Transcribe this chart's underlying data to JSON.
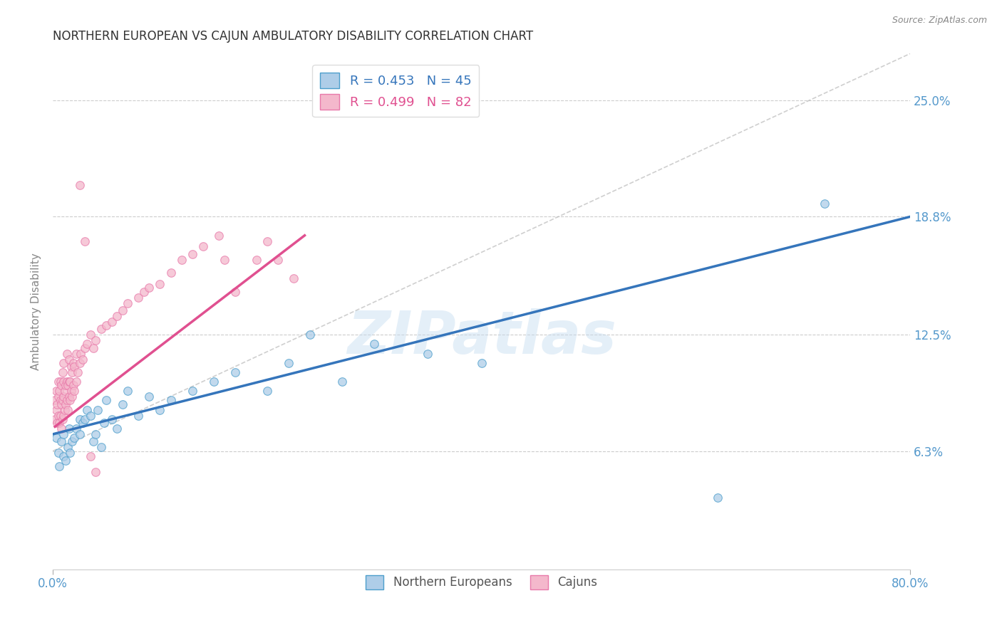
{
  "title": "NORTHERN EUROPEAN VS CAJUN AMBULATORY DISABILITY CORRELATION CHART",
  "source": "Source: ZipAtlas.com",
  "ylabel": "Ambulatory Disability",
  "ytick_labels": [
    "6.3%",
    "12.5%",
    "18.8%",
    "25.0%"
  ],
  "ytick_values": [
    0.063,
    0.125,
    0.188,
    0.25
  ],
  "xlim": [
    0.0,
    0.8
  ],
  "ylim": [
    0.0,
    0.275
  ],
  "legend_blue_label": "R = 0.453   N = 45",
  "legend_pink_label": "R = 0.499   N = 82",
  "legend_blue_series": "Northern Europeans",
  "legend_pink_series": "Cajuns",
  "blue_fill_color": "#aecde8",
  "pink_fill_color": "#f4b8cc",
  "blue_edge_color": "#4d9fcc",
  "pink_edge_color": "#e87aaa",
  "blue_line_color": "#3575bb",
  "pink_line_color": "#e05090",
  "axis_label_color": "#5599cc",
  "watermark": "ZIPatlas",
  "blue_line_x0": 0.0,
  "blue_line_y0": 0.072,
  "blue_line_x1": 0.8,
  "blue_line_y1": 0.188,
  "pink_line_x0": 0.002,
  "pink_line_y0": 0.076,
  "pink_line_x1": 0.235,
  "pink_line_y1": 0.178,
  "ref_line_x0": 0.0,
  "ref_line_y0": 0.063,
  "ref_line_x1": 0.8,
  "ref_line_y1": 0.275,
  "blue_scatter_x": [
    0.003,
    0.005,
    0.006,
    0.008,
    0.01,
    0.01,
    0.012,
    0.014,
    0.015,
    0.016,
    0.018,
    0.02,
    0.022,
    0.025,
    0.025,
    0.028,
    0.03,
    0.032,
    0.035,
    0.038,
    0.04,
    0.042,
    0.045,
    0.048,
    0.05,
    0.055,
    0.06,
    0.065,
    0.07,
    0.08,
    0.09,
    0.1,
    0.11,
    0.13,
    0.15,
    0.17,
    0.2,
    0.22,
    0.24,
    0.27,
    0.3,
    0.35,
    0.4,
    0.62,
    0.72
  ],
  "blue_scatter_y": [
    0.07,
    0.062,
    0.055,
    0.068,
    0.06,
    0.072,
    0.058,
    0.065,
    0.075,
    0.062,
    0.068,
    0.07,
    0.075,
    0.08,
    0.072,
    0.078,
    0.08,
    0.085,
    0.082,
    0.068,
    0.072,
    0.085,
    0.065,
    0.078,
    0.09,
    0.08,
    0.075,
    0.088,
    0.095,
    0.082,
    0.092,
    0.085,
    0.09,
    0.095,
    0.1,
    0.105,
    0.095,
    0.11,
    0.125,
    0.1,
    0.12,
    0.115,
    0.11,
    0.038,
    0.195
  ],
  "pink_scatter_x": [
    0.002,
    0.002,
    0.003,
    0.003,
    0.004,
    0.004,
    0.005,
    0.005,
    0.005,
    0.006,
    0.006,
    0.007,
    0.007,
    0.007,
    0.008,
    0.008,
    0.008,
    0.009,
    0.009,
    0.009,
    0.01,
    0.01,
    0.01,
    0.01,
    0.011,
    0.011,
    0.012,
    0.012,
    0.013,
    0.013,
    0.013,
    0.014,
    0.014,
    0.015,
    0.015,
    0.015,
    0.016,
    0.016,
    0.017,
    0.017,
    0.018,
    0.018,
    0.019,
    0.019,
    0.02,
    0.02,
    0.022,
    0.022,
    0.023,
    0.025,
    0.026,
    0.028,
    0.03,
    0.032,
    0.035,
    0.038,
    0.04,
    0.045,
    0.05,
    0.055,
    0.06,
    0.065,
    0.07,
    0.08,
    0.085,
    0.09,
    0.1,
    0.11,
    0.12,
    0.13,
    0.14,
    0.155,
    0.16,
    0.17,
    0.19,
    0.2,
    0.21,
    0.225,
    0.025,
    0.03,
    0.035,
    0.04
  ],
  "pink_scatter_y": [
    0.08,
    0.09,
    0.085,
    0.095,
    0.078,
    0.088,
    0.082,
    0.092,
    0.1,
    0.078,
    0.095,
    0.082,
    0.09,
    0.1,
    0.075,
    0.088,
    0.098,
    0.08,
    0.09,
    0.105,
    0.082,
    0.092,
    0.1,
    0.11,
    0.085,
    0.095,
    0.088,
    0.098,
    0.09,
    0.1,
    0.115,
    0.085,
    0.098,
    0.092,
    0.1,
    0.112,
    0.09,
    0.1,
    0.095,
    0.108,
    0.092,
    0.105,
    0.098,
    0.11,
    0.095,
    0.108,
    0.1,
    0.115,
    0.105,
    0.11,
    0.115,
    0.112,
    0.118,
    0.12,
    0.125,
    0.118,
    0.122,
    0.128,
    0.13,
    0.132,
    0.135,
    0.138,
    0.142,
    0.145,
    0.148,
    0.15,
    0.152,
    0.158,
    0.165,
    0.168,
    0.172,
    0.178,
    0.165,
    0.148,
    0.165,
    0.175,
    0.165,
    0.155,
    0.205,
    0.175,
    0.06,
    0.052
  ]
}
